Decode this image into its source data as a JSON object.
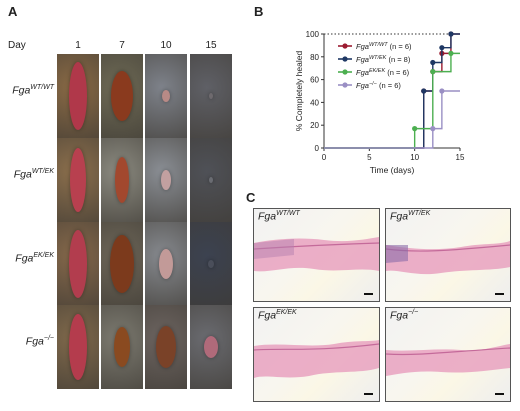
{
  "panel_a": {
    "letter": "A",
    "day_header": "Day",
    "days": [
      "1",
      "7",
      "10",
      "15"
    ],
    "rows": [
      {
        "base": "Fga",
        "sup": "WT/WT"
      },
      {
        "base": "Fga",
        "sup": "WT/EK"
      },
      {
        "base": "Fga",
        "sup": "EK/EK"
      },
      {
        "base": "Fga",
        "sup": "−/−"
      }
    ]
  },
  "panel_b": {
    "letter": "B"
  },
  "panel_c": {
    "letter": "C",
    "panels": [
      {
        "base": "Fga",
        "sup": "WT/WT"
      },
      {
        "base": "Fga",
        "sup": "WT/EK"
      },
      {
        "base": "Fga",
        "sup": "EK/EK"
      },
      {
        "base": "Fga",
        "sup": "−/−"
      }
    ]
  },
  "chart_data": {
    "type": "line",
    "step": true,
    "xlabel": "Time (days)",
    "ylabel": "% Completely healed",
    "xlim": [
      0,
      15
    ],
    "ylim": [
      0,
      100
    ],
    "xticks": [
      "0",
      "5",
      "10",
      "15"
    ],
    "yticks": [
      "0",
      "20",
      "40",
      "60",
      "80",
      "100"
    ],
    "reference_line": {
      "y": 100,
      "style": "dotted"
    },
    "legend_position": "top-right",
    "series": [
      {
        "genotype": "Fga",
        "sup": "WT/WT",
        "n_label": "(n = 6)",
        "color": "#9b1b30",
        "x": [
          0,
          11,
          12,
          13,
          14,
          15
        ],
        "y": [
          0,
          50,
          67,
          83,
          100,
          100
        ]
      },
      {
        "genotype": "Fga",
        "sup": "WT/EK",
        "n_label": "(n = 8)",
        "color": "#1f3864",
        "x": [
          0,
          11,
          12,
          13,
          14,
          15
        ],
        "y": [
          0,
          50,
          75,
          88,
          100,
          100
        ]
      },
      {
        "genotype": "Fga",
        "sup": "EK/EK",
        "n_label": "(n = 6)",
        "color": "#4caf50",
        "x": [
          0,
          10,
          12,
          14,
          15
        ],
        "y": [
          0,
          17,
          67,
          83,
          83
        ]
      },
      {
        "genotype": "Fga",
        "sup": "−/−",
        "n_label": "(n = 6)",
        "color": "#9a8fc4",
        "x": [
          0,
          12,
          13,
          15
        ],
        "y": [
          0,
          17,
          50,
          50
        ]
      }
    ]
  }
}
